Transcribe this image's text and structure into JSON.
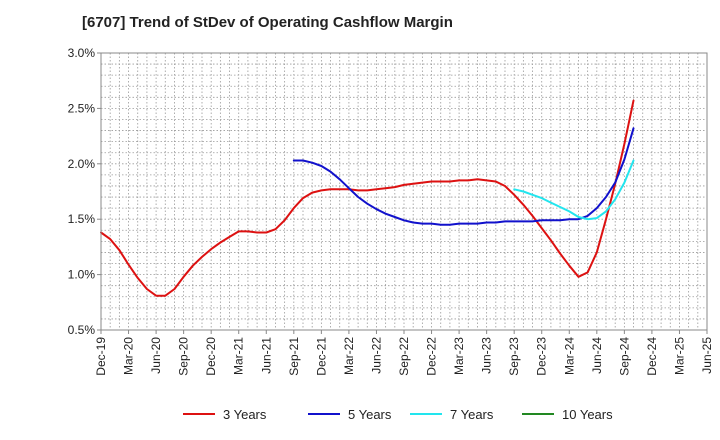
{
  "chart_data": {
    "type": "line",
    "title": "[6707]  Trend of StDev of Operating Cashflow Margin",
    "xlabel": "",
    "ylabel": "",
    "ylim": [
      0.5,
      3.0
    ],
    "y_ticks": [
      0.5,
      1.0,
      1.5,
      2.0,
      2.5,
      3.0
    ],
    "y_tick_labels": [
      "0.5%",
      "1.0%",
      "1.5%",
      "2.0%",
      "2.5%",
      "3.0%"
    ],
    "x_range": [
      0,
      66
    ],
    "x_ticks": [
      {
        "pos": 0,
        "label": "Dec-19"
      },
      {
        "pos": 3,
        "label": "Mar-20"
      },
      {
        "pos": 6,
        "label": "Jun-20"
      },
      {
        "pos": 9,
        "label": "Sep-20"
      },
      {
        "pos": 12,
        "label": "Dec-20"
      },
      {
        "pos": 15,
        "label": "Mar-21"
      },
      {
        "pos": 18,
        "label": "Jun-21"
      },
      {
        "pos": 21,
        "label": "Sep-21"
      },
      {
        "pos": 24,
        "label": "Dec-21"
      },
      {
        "pos": 27,
        "label": "Mar-22"
      },
      {
        "pos": 30,
        "label": "Jun-22"
      },
      {
        "pos": 33,
        "label": "Sep-22"
      },
      {
        "pos": 36,
        "label": "Dec-22"
      },
      {
        "pos": 39,
        "label": "Mar-23"
      },
      {
        "pos": 42,
        "label": "Jun-23"
      },
      {
        "pos": 45,
        "label": "Sep-23"
      },
      {
        "pos": 48,
        "label": "Dec-23"
      },
      {
        "pos": 51,
        "label": "Mar-24"
      },
      {
        "pos": 54,
        "label": "Jun-24"
      },
      {
        "pos": 57,
        "label": "Sep-24"
      },
      {
        "pos": 60,
        "label": "Dec-24"
      },
      {
        "pos": 63,
        "label": "Mar-25"
      },
      {
        "pos": 66,
        "label": "Jun-25"
      }
    ],
    "grid": true,
    "legend_position": "bottom",
    "series": [
      {
        "name": "3 Years",
        "color": "#dd1111",
        "points": [
          [
            0,
            1.38
          ],
          [
            1,
            1.32
          ],
          [
            2,
            1.22
          ],
          [
            3,
            1.09
          ],
          [
            4,
            0.97
          ],
          [
            5,
            0.87
          ],
          [
            6,
            0.81
          ],
          [
            7,
            0.81
          ],
          [
            8,
            0.87
          ],
          [
            9,
            0.98
          ],
          [
            10,
            1.08
          ],
          [
            11,
            1.16
          ],
          [
            12,
            1.23
          ],
          [
            13,
            1.29
          ],
          [
            14,
            1.34
          ],
          [
            15,
            1.39
          ],
          [
            16,
            1.39
          ],
          [
            17,
            1.38
          ],
          [
            18,
            1.38
          ],
          [
            19,
            1.41
          ],
          [
            20,
            1.49
          ],
          [
            21,
            1.6
          ],
          [
            22,
            1.69
          ],
          [
            23,
            1.74
          ],
          [
            24,
            1.76
          ],
          [
            25,
            1.77
          ],
          [
            26,
            1.77
          ],
          [
            27,
            1.77
          ],
          [
            28,
            1.76
          ],
          [
            29,
            1.76
          ],
          [
            30,
            1.77
          ],
          [
            31,
            1.78
          ],
          [
            32,
            1.79
          ],
          [
            33,
            1.81
          ],
          [
            34,
            1.82
          ],
          [
            35,
            1.83
          ],
          [
            36,
            1.84
          ],
          [
            37,
            1.84
          ],
          [
            38,
            1.84
          ],
          [
            39,
            1.85
          ],
          [
            40,
            1.85
          ],
          [
            41,
            1.86
          ],
          [
            42,
            1.85
          ],
          [
            43,
            1.84
          ],
          [
            44,
            1.8
          ],
          [
            45,
            1.72
          ],
          [
            46,
            1.63
          ],
          [
            47,
            1.53
          ],
          [
            48,
            1.42
          ],
          [
            49,
            1.31
          ],
          [
            50,
            1.19
          ],
          [
            51,
            1.08
          ],
          [
            52,
            0.98
          ],
          [
            53,
            1.02
          ],
          [
            54,
            1.2
          ],
          [
            55,
            1.5
          ],
          [
            56,
            1.82
          ],
          [
            57,
            2.18
          ],
          [
            58,
            2.57
          ]
        ]
      },
      {
        "name": "5 Years",
        "color": "#1111cc",
        "points": [
          [
            21,
            2.03
          ],
          [
            22,
            2.03
          ],
          [
            23,
            2.01
          ],
          [
            24,
            1.98
          ],
          [
            25,
            1.93
          ],
          [
            26,
            1.86
          ],
          [
            27,
            1.78
          ],
          [
            28,
            1.7
          ],
          [
            29,
            1.64
          ],
          [
            30,
            1.59
          ],
          [
            31,
            1.55
          ],
          [
            32,
            1.52
          ],
          [
            33,
            1.49
          ],
          [
            34,
            1.47
          ],
          [
            35,
            1.46
          ],
          [
            36,
            1.46
          ],
          [
            37,
            1.45
          ],
          [
            38,
            1.45
          ],
          [
            39,
            1.46
          ],
          [
            40,
            1.46
          ],
          [
            41,
            1.46
          ],
          [
            42,
            1.47
          ],
          [
            43,
            1.47
          ],
          [
            44,
            1.48
          ],
          [
            45,
            1.48
          ],
          [
            46,
            1.48
          ],
          [
            47,
            1.48
          ],
          [
            48,
            1.49
          ],
          [
            49,
            1.49
          ],
          [
            50,
            1.49
          ],
          [
            51,
            1.5
          ],
          [
            52,
            1.5
          ],
          [
            53,
            1.53
          ],
          [
            54,
            1.6
          ],
          [
            55,
            1.7
          ],
          [
            56,
            1.83
          ],
          [
            57,
            2.04
          ],
          [
            58,
            2.32
          ]
        ]
      },
      {
        "name": "7 Years",
        "color": "#22e5ee",
        "points": [
          [
            45,
            1.77
          ],
          [
            46,
            1.75
          ],
          [
            47,
            1.72
          ],
          [
            48,
            1.69
          ],
          [
            49,
            1.65
          ],
          [
            50,
            1.61
          ],
          [
            51,
            1.57
          ],
          [
            52,
            1.52
          ],
          [
            53,
            1.5
          ],
          [
            54,
            1.51
          ],
          [
            55,
            1.57
          ],
          [
            56,
            1.68
          ],
          [
            57,
            1.83
          ],
          [
            58,
            2.03
          ]
        ]
      },
      {
        "name": "10 Years",
        "color": "#228822",
        "points": []
      }
    ]
  }
}
